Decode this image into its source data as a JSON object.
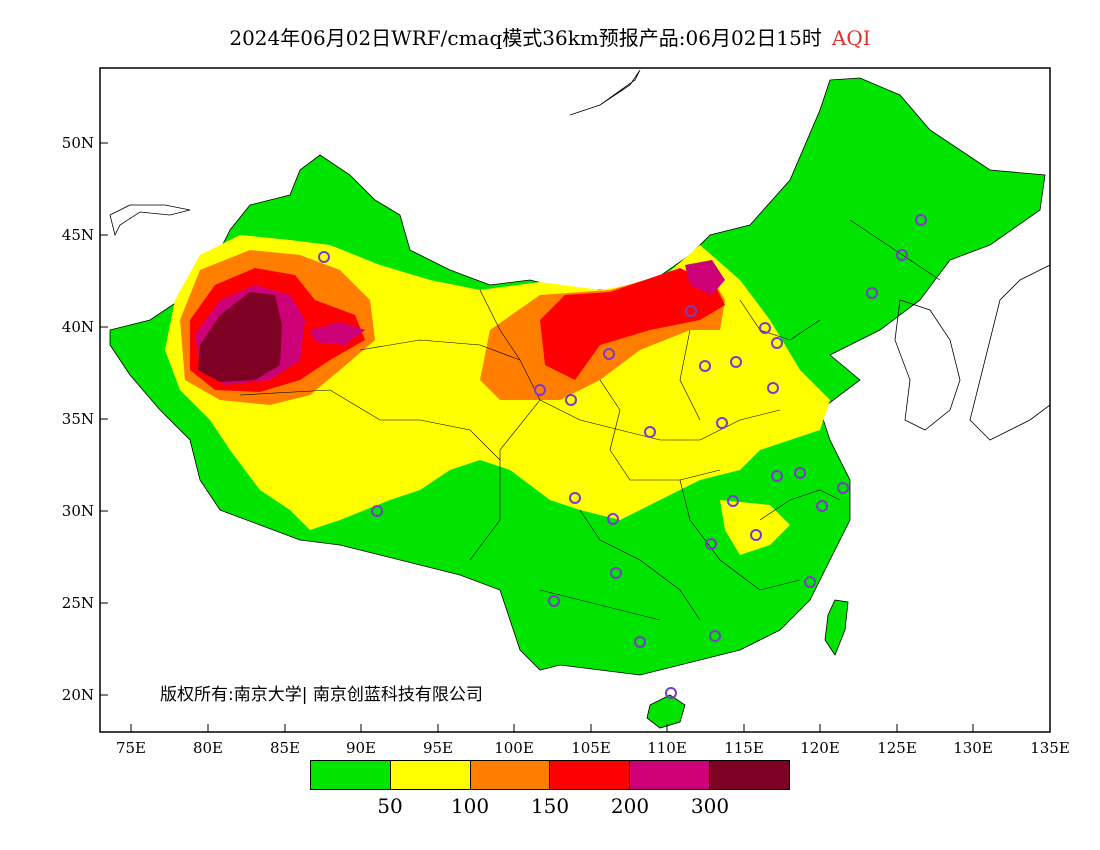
{
  "title": {
    "main": "2024年06月02日WRF/cmaq模式36km预报产品:06月02日15时",
    "product": "AQI"
  },
  "axes": {
    "lat_labels": [
      "50N",
      "45N",
      "40N",
      "35N",
      "30N",
      "25N",
      "20N"
    ],
    "lon_labels": [
      "75E",
      "80E",
      "85E",
      "90E",
      "95E",
      "100E",
      "105E",
      "110E",
      "115E",
      "120E",
      "125E",
      "130E",
      "135E"
    ],
    "lon_range": [
      73,
      135
    ],
    "lat_range": [
      18,
      54
    ]
  },
  "copyright": "版权所有:南京大学| 南京创蓝科技有限公司",
  "legend": {
    "colors": [
      "#00e400",
      "#ffff00",
      "#ff7e00",
      "#ff0000",
      "#cc0077",
      "#7e0023"
    ],
    "values": [
      "50",
      "100",
      "150",
      "200",
      "300"
    ]
  }
}
